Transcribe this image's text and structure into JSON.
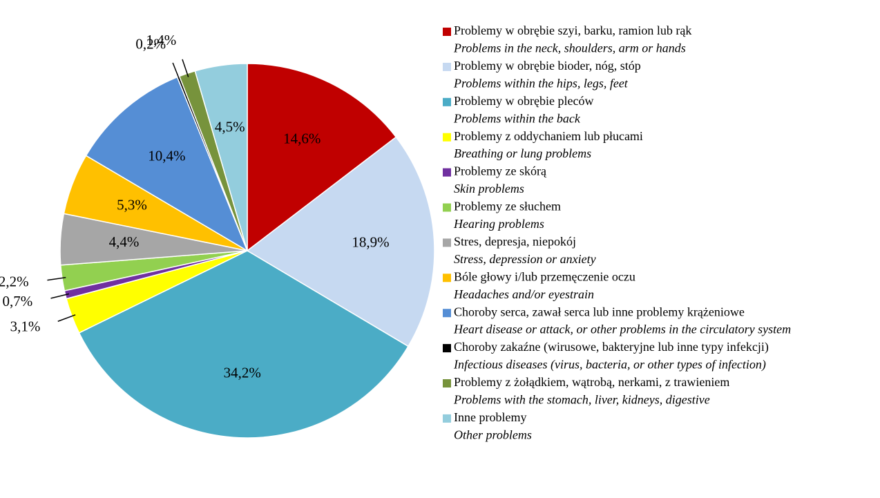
{
  "chart_data": {
    "type": "pie",
    "categories": [
      "Problemy w obrębie szyi, barku, ramion lub rąk",
      "Problemy w obrębie bioder, nóg, stóp",
      "Problemy w obrębie pleców",
      "Problemy z oddychaniem lub płucami",
      "Problemy ze skórą",
      "Problemy ze słuchem",
      "Stres, depresja, niepokój",
      "Bóle głowy i/lub przemęczenie oczu",
      "Choroby serca, zawał serca lub inne problemy krążeniowe",
      "Choroby zakaźne (wirusowe, bakteryjne lub inne typy infekcji)",
      "Problemy z żołądkiem, wątrobą, nerkami, z trawieniem",
      "Inne problemy"
    ],
    "translations": [
      "Problems in the neck, shoulders, arm or hands",
      "Problems within the hips, legs, feet",
      "Problems within the back",
      "Breathing or lung problems",
      "Skin problems",
      "Hearing problems",
      "Stress, depression or anxiety",
      "Headaches and/or eyestrain",
      "Heart disease or attack, or other problems in the circulatory system",
      "Infectious diseases (virus, bacteria, or other types of infection)",
      "Problems with the stomach, liver, kidneys, digestive",
      "Other problems"
    ],
    "values": [
      14.6,
      18.9,
      34.2,
      3.1,
      0.7,
      2.2,
      4.4,
      5.3,
      10.4,
      0.2,
      1.4,
      4.5
    ],
    "value_labels": [
      "14,6%",
      "18,9%",
      "34,2%",
      "3,1%",
      "0,7%",
      "2,2%",
      "4,4%",
      "5,3%",
      "10,4%",
      "0,2%",
      "1,4%",
      "4,5%"
    ],
    "colors": [
      "#c00000",
      "#c6d9f1",
      "#4bacc6",
      "#ffff00",
      "#7030a0",
      "#92d050",
      "#a6a6a6",
      "#ffc000",
      "#558ed5",
      "#000000",
      "#77933c",
      "#93cddd"
    ]
  }
}
